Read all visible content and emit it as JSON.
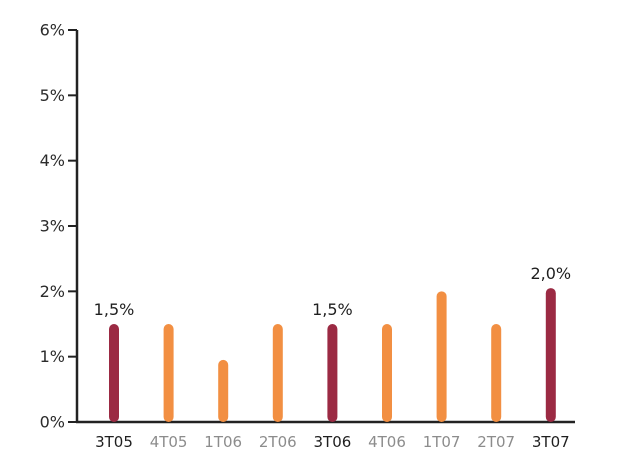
{
  "chart_data": {
    "type": "bar",
    "title": "",
    "xlabel": "",
    "ylabel": "",
    "ylim": [
      0,
      6
    ],
    "y_ticks": [
      "0%",
      "1%",
      "2%",
      "3%",
      "4%",
      "5%",
      "6%"
    ],
    "grid": false,
    "categories": [
      "3T05",
      "4T05",
      "1T06",
      "2T06",
      "3T06",
      "4T06",
      "1T07",
      "2T07",
      "3T07"
    ],
    "values": [
      1.5,
      1.5,
      0.95,
      1.5,
      1.5,
      1.5,
      2.0,
      1.5,
      2.05
    ],
    "highlight": [
      true,
      false,
      false,
      false,
      true,
      false,
      false,
      false,
      true
    ],
    "data_labels": [
      "1,5%",
      "",
      "",
      "",
      "1,5%",
      "",
      "",
      "",
      "2,0%"
    ],
    "colors": {
      "highlight": "#9b2a43",
      "normal": "#f28f42",
      "axis": "#222222",
      "label_highlight": "#1f1f1f",
      "label_normal": "#8c8c8c"
    }
  }
}
